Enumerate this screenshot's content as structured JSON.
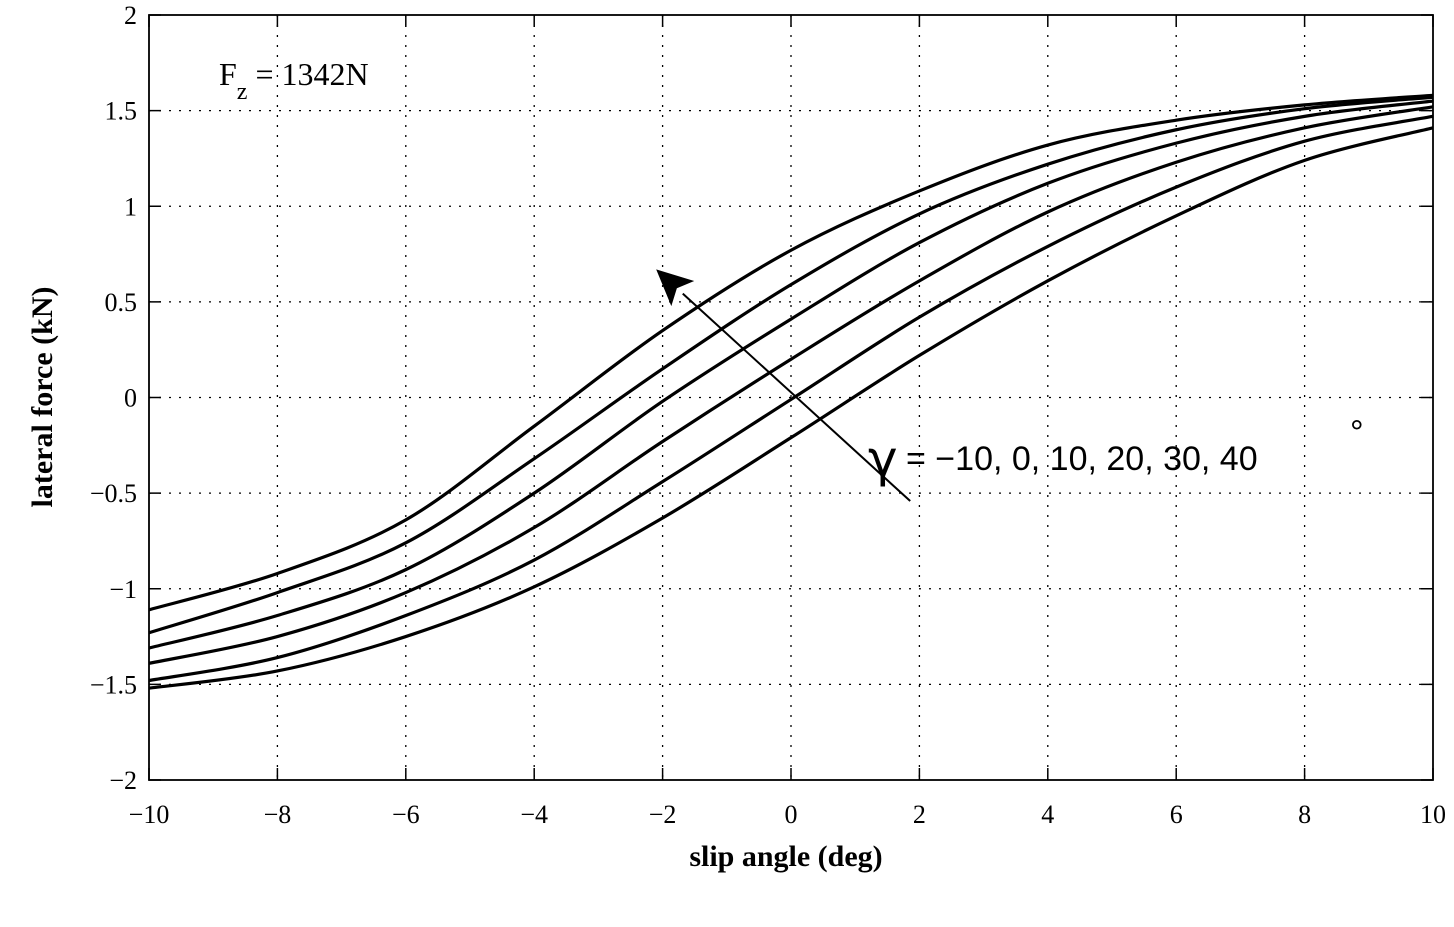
{
  "chart_data": {
    "type": "line",
    "title": "",
    "xlabel": "slip angle (deg)",
    "ylabel": "lateral force (kN)",
    "xlim": [
      -10,
      10
    ],
    "ylim": [
      -2,
      2
    ],
    "x_ticks": [
      -10,
      -8,
      -6,
      -4,
      -2,
      0,
      2,
      4,
      6,
      8,
      10
    ],
    "y_ticks": [
      -2,
      -1.5,
      -1,
      -0.5,
      0,
      0.5,
      1,
      1.5,
      2
    ],
    "x_tick_labels": [
      "−10",
      "−8",
      "−6",
      "−4",
      "−2",
      "0",
      "2",
      "4",
      "6",
      "8",
      "10"
    ],
    "y_tick_labels": [
      "−2",
      "−1.5",
      "−1",
      "−0.5",
      "0",
      "0.5",
      "1",
      "1.5",
      "2"
    ],
    "grid": true,
    "grid_style": "dotted",
    "line_color": "#000000",
    "x": [
      -10,
      -8,
      -6,
      -4,
      -2,
      0,
      2,
      4,
      6,
      8,
      10
    ],
    "series": [
      {
        "values": [
          -1.11,
          -0.92,
          -0.64,
          -0.15,
          0.35,
          0.77,
          1.08,
          1.32,
          1.45,
          1.53,
          1.58
        ]
      },
      {
        "values": [
          -1.23,
          -1.02,
          -0.76,
          -0.32,
          0.15,
          0.59,
          0.96,
          1.22,
          1.4,
          1.51,
          1.57
        ]
      },
      {
        "values": [
          -1.31,
          -1.14,
          -0.9,
          -0.5,
          -0.02,
          0.41,
          0.81,
          1.12,
          1.33,
          1.47,
          1.55
        ]
      },
      {
        "values": [
          -1.39,
          -1.25,
          -1.02,
          -0.68,
          -0.23,
          0.2,
          0.61,
          0.97,
          1.23,
          1.41,
          1.52
        ]
      },
      {
        "values": [
          -1.48,
          -1.36,
          -1.14,
          -0.85,
          -0.44,
          -0.01,
          0.42,
          0.79,
          1.1,
          1.34,
          1.47
        ]
      },
      {
        "values": [
          -1.52,
          -1.43,
          -1.25,
          -0.99,
          -0.63,
          -0.21,
          0.22,
          0.61,
          0.95,
          1.24,
          1.41
        ]
      }
    ],
    "annotations": {
      "normal_load": {
        "prefix": "F",
        "subscript": "z",
        "suffix": " = 1342N"
      },
      "camber": {
        "symbol": "γ",
        "text": " = −10, 0, 10, 20, 30, 40",
        "degree": "°"
      },
      "arrow": {
        "from": [
          1.0,
          -0.28
        ],
        "to": [
          -2.1,
          0.67
        ]
      }
    }
  }
}
